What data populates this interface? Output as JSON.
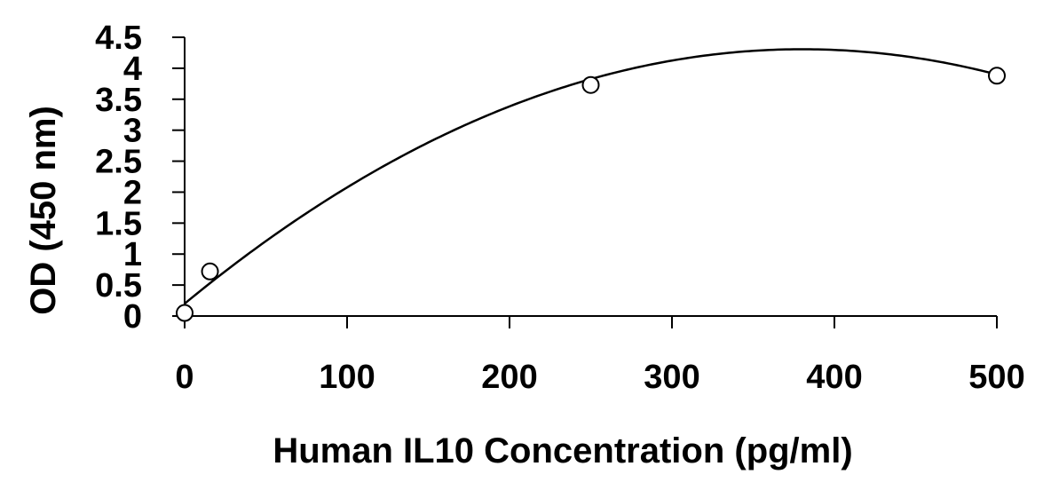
{
  "chart_data": {
    "type": "scatter",
    "title": "",
    "xlabel": "Human IL10 Concentration (pg/ml)",
    "ylabel": "OD (450 nm)",
    "xlim": [
      0,
      500
    ],
    "ylim": [
      0,
      4.5
    ],
    "x_ticks": [
      0,
      100,
      200,
      300,
      400,
      500
    ],
    "x_tick_labels": [
      "0",
      "100",
      "200",
      "300",
      "400",
      "500"
    ],
    "y_ticks": [
      0,
      0.5,
      1,
      1.5,
      2,
      2.5,
      3,
      3.5,
      4,
      4.5
    ],
    "y_tick_labels": [
      "0",
      "0.5",
      "1",
      "1.5",
      "2",
      "2.5",
      "3",
      "3.5",
      "4",
      "4.5"
    ],
    "grid": false,
    "series": [
      {
        "marker": "open-circle",
        "points": [
          {
            "x": 0,
            "y": 0.05
          },
          {
            "x": 15.6,
            "y": 0.72
          },
          {
            "x": 250,
            "y": 3.73
          },
          {
            "x": 500,
            "y": 3.88
          }
        ]
      }
    ],
    "trendline": {
      "type": "polynomial-2",
      "coefficients": [
        0.2,
        0.0216,
        -2.84e-05
      ]
    }
  },
  "colors": {
    "line": "#000000",
    "marker_fill": "#ffffff",
    "marker_stroke": "#000000"
  }
}
